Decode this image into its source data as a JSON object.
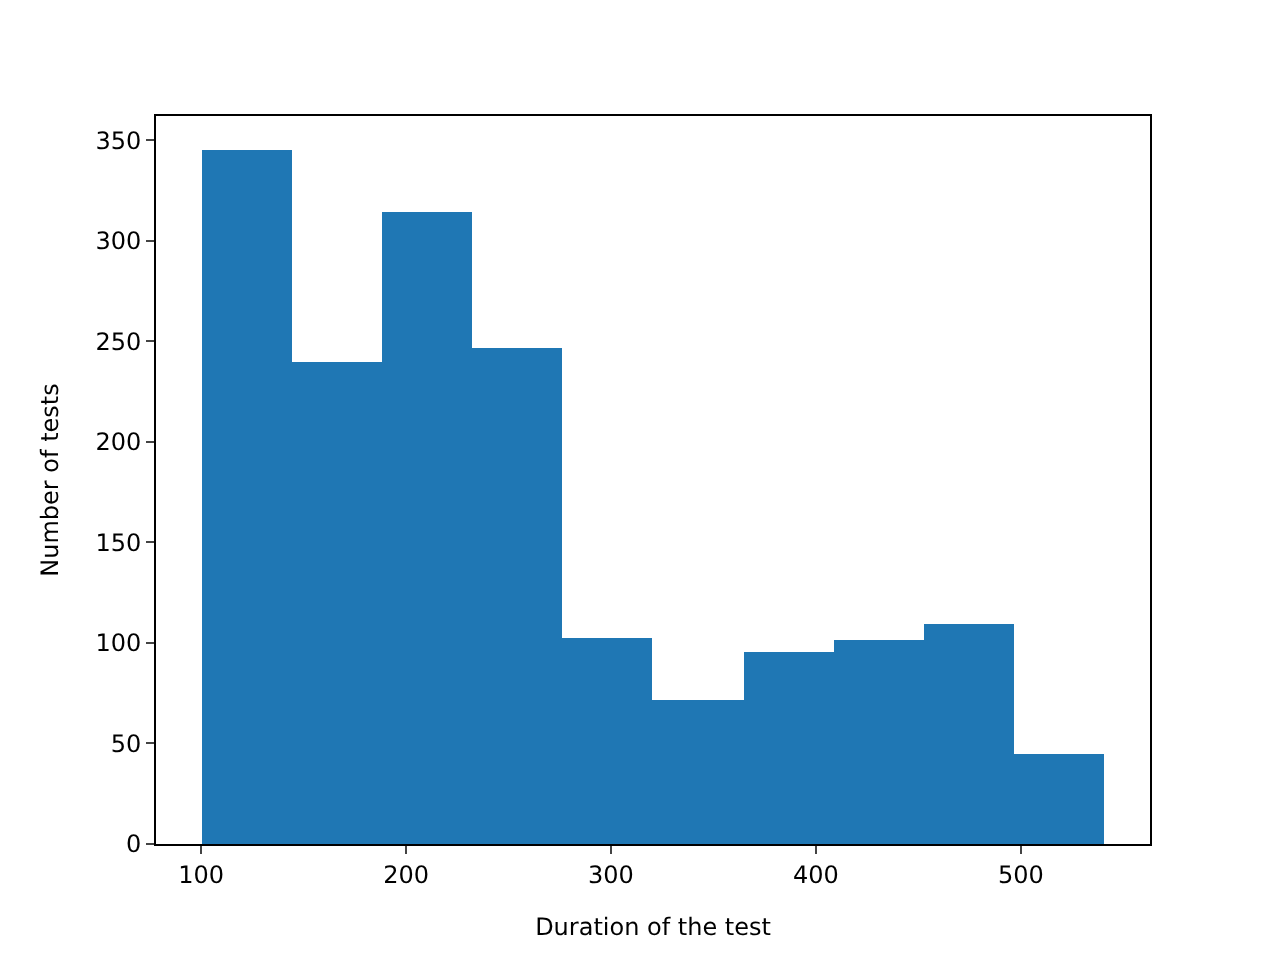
{
  "chart_data": {
    "type": "histogram",
    "xlabel": "Duration of the test",
    "ylabel": "Number of tests",
    "bins": [
      100,
      144,
      188,
      232,
      276,
      320,
      365,
      409,
      453,
      497,
      541
    ],
    "values": [
      345,
      240,
      314,
      247,
      102,
      72,
      95,
      101,
      109,
      45
    ],
    "color": "#1f77b4",
    "xlim": [
      78,
      563
    ],
    "ylim": [
      0,
      362
    ],
    "xticks": [
      100,
      200,
      300,
      400,
      500
    ],
    "yticks": [
      0,
      50,
      100,
      150,
      200,
      250,
      300,
      350
    ]
  }
}
